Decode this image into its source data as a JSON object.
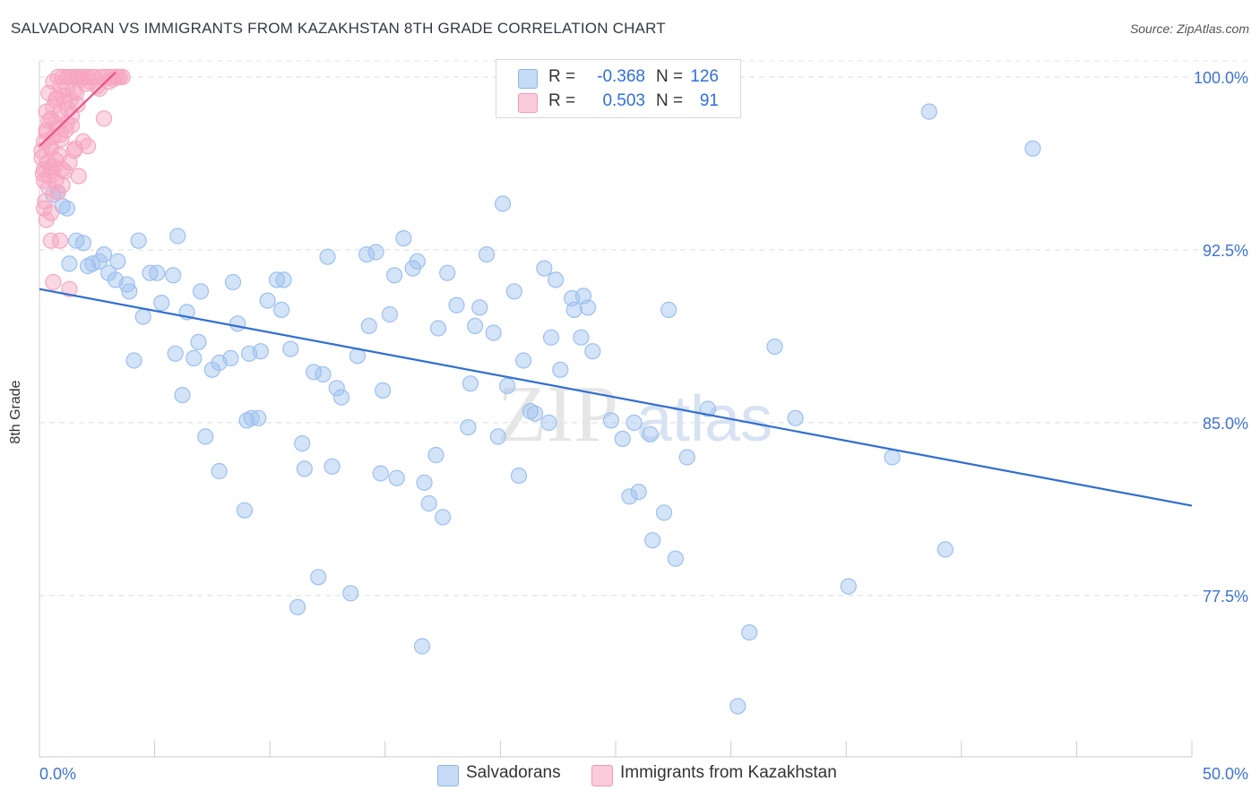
{
  "title": "SALVADORAN VS IMMIGRANTS FROM KAZAKHSTAN 8TH GRADE CORRELATION CHART",
  "source": "Source: ZipAtlas.com",
  "watermark": {
    "zip": "ZIP",
    "atlas": "atlas"
  },
  "legend": {
    "series": [
      {
        "r_label": "R =",
        "r_value": "-0.368",
        "n_label": "N =",
        "n_value": "126",
        "color": "#9dc0ef"
      },
      {
        "r_label": "R =",
        "r_value": "0.503",
        "n_label": "N =",
        "n_value": "91",
        "color": "#f6a6c1"
      }
    ]
  },
  "bottom_legend": [
    {
      "label": "Salvadorans",
      "color": "#9dc0ef"
    },
    {
      "label": "Immigrants from Kazakhstan",
      "color": "#f6a6c1"
    }
  ],
  "chart_data": {
    "type": "scatter",
    "title": "SALVADORAN VS IMMIGRANTS FROM KAZAKHSTAN 8TH GRADE CORRELATION CHART",
    "xlabel": "",
    "ylabel": "8th Grade",
    "xlim": [
      0,
      50
    ],
    "ylim": [
      70.5,
      100.7
    ],
    "x_tick_labels": [
      "0.0%",
      "50.0%"
    ],
    "y_ticks": [
      77.5,
      85.0,
      92.5,
      100.0
    ],
    "y_tick_labels": [
      "77.5%",
      "85.0%",
      "92.5%",
      "100.0%"
    ],
    "grid": true,
    "legend_position": "top-center",
    "series": [
      {
        "name": "Salvadorans",
        "color": "#9dc0ef",
        "line_color": "#2f6fd0",
        "trend": {
          "x": [
            0.0,
            50.0
          ],
          "y": [
            90.8,
            81.4
          ]
        },
        "points": [
          [
            0.8,
            95.0
          ],
          [
            1.0,
            94.4
          ],
          [
            1.2,
            94.3
          ],
          [
            1.6,
            92.9
          ],
          [
            1.9,
            92.8
          ],
          [
            2.1,
            91.8
          ],
          [
            2.3,
            91.9
          ],
          [
            2.8,
            92.3
          ],
          [
            3.0,
            91.5
          ],
          [
            3.4,
            92.0
          ],
          [
            3.8,
            91.0
          ],
          [
            3.9,
            90.7
          ],
          [
            4.1,
            87.7
          ],
          [
            4.3,
            92.9
          ],
          [
            4.5,
            89.6
          ],
          [
            4.8,
            91.5
          ],
          [
            5.1,
            91.5
          ],
          [
            5.3,
            90.2
          ],
          [
            5.8,
            91.4
          ],
          [
            5.9,
            88.0
          ],
          [
            6.0,
            93.1
          ],
          [
            6.2,
            86.2
          ],
          [
            6.4,
            89.8
          ],
          [
            6.7,
            87.8
          ],
          [
            6.9,
            88.5
          ],
          [
            7.0,
            90.7
          ],
          [
            7.2,
            84.4
          ],
          [
            7.5,
            87.3
          ],
          [
            7.8,
            82.9
          ],
          [
            7.8,
            87.6
          ],
          [
            8.3,
            87.8
          ],
          [
            8.4,
            91.1
          ],
          [
            8.6,
            89.3
          ],
          [
            8.9,
            81.2
          ],
          [
            9.1,
            88.0
          ],
          [
            9.2,
            85.2
          ],
          [
            9.5,
            85.2
          ],
          [
            9.6,
            88.1
          ],
          [
            9.9,
            90.3
          ],
          [
            10.3,
            91.2
          ],
          [
            10.5,
            89.9
          ],
          [
            10.6,
            91.2
          ],
          [
            10.9,
            88.2
          ],
          [
            11.2,
            77.0
          ],
          [
            11.4,
            84.1
          ],
          [
            11.5,
            83.0
          ],
          [
            11.9,
            87.2
          ],
          [
            12.1,
            78.3
          ],
          [
            12.3,
            87.1
          ],
          [
            12.5,
            92.2
          ],
          [
            12.7,
            83.1
          ],
          [
            12.9,
            86.5
          ],
          [
            13.1,
            86.1
          ],
          [
            13.5,
            77.6
          ],
          [
            13.8,
            87.9
          ],
          [
            14.2,
            92.3
          ],
          [
            14.3,
            89.2
          ],
          [
            14.6,
            92.4
          ],
          [
            14.8,
            82.8
          ],
          [
            15.2,
            89.7
          ],
          [
            15.4,
            91.4
          ],
          [
            15.5,
            82.6
          ],
          [
            15.8,
            93.0
          ],
          [
            16.2,
            91.7
          ],
          [
            16.4,
            92.0
          ],
          [
            16.6,
            75.3
          ],
          [
            16.7,
            82.4
          ],
          [
            16.9,
            81.5
          ],
          [
            17.2,
            83.6
          ],
          [
            17.3,
            89.1
          ],
          [
            17.5,
            80.9
          ],
          [
            17.7,
            91.5
          ],
          [
            18.1,
            90.1
          ],
          [
            18.6,
            84.8
          ],
          [
            18.9,
            89.2
          ],
          [
            19.1,
            90.0
          ],
          [
            19.4,
            92.3
          ],
          [
            19.7,
            88.9
          ],
          [
            19.9,
            84.4
          ],
          [
            20.1,
            94.5
          ],
          [
            20.3,
            86.6
          ],
          [
            20.6,
            90.7
          ],
          [
            20.8,
            82.7
          ],
          [
            21.0,
            87.7
          ],
          [
            21.3,
            85.5
          ],
          [
            21.5,
            85.4
          ],
          [
            21.9,
            91.7
          ],
          [
            22.1,
            85.0
          ],
          [
            22.2,
            88.7
          ],
          [
            22.4,
            91.2
          ],
          [
            22.6,
            87.3
          ],
          [
            23.1,
            90.4
          ],
          [
            23.2,
            89.9
          ],
          [
            23.5,
            88.7
          ],
          [
            23.6,
            90.5
          ],
          [
            23.8,
            90.0
          ],
          [
            24.0,
            88.1
          ],
          [
            24.4,
            100.0
          ],
          [
            24.8,
            85.1
          ],
          [
            25.3,
            84.3
          ],
          [
            25.6,
            81.8
          ],
          [
            25.8,
            85.0
          ],
          [
            26.0,
            82.0
          ],
          [
            26.5,
            84.5
          ],
          [
            26.6,
            79.9
          ],
          [
            27.1,
            81.1
          ],
          [
            27.3,
            89.9
          ],
          [
            28.1,
            83.5
          ],
          [
            29.0,
            85.6
          ],
          [
            30.8,
            75.9
          ],
          [
            30.3,
            72.7
          ],
          [
            31.9,
            88.3
          ],
          [
            32.8,
            85.2
          ],
          [
            35.1,
            77.9
          ],
          [
            37.0,
            83.5
          ],
          [
            38.6,
            98.5
          ],
          [
            39.3,
            79.5
          ],
          [
            43.1,
            96.9
          ],
          [
            0.6,
            94.9
          ],
          [
            1.3,
            91.9
          ],
          [
            2.6,
            92.0
          ],
          [
            3.3,
            91.2
          ],
          [
            9.0,
            85.1
          ],
          [
            14.9,
            86.4
          ],
          [
            18.7,
            86.7
          ],
          [
            27.6,
            79.1
          ]
        ]
      },
      {
        "name": "Immigrants from Kazakhstan",
        "color": "#f6a6c1",
        "line_color": "#e8558a",
        "trend": {
          "x": [
            0.0,
            3.3
          ],
          "y": [
            97.0,
            100.2
          ]
        },
        "points": [
          [
            0.1,
            96.8
          ],
          [
            0.1,
            96.5
          ],
          [
            0.15,
            95.8
          ],
          [
            0.2,
            97.2
          ],
          [
            0.2,
            96.0
          ],
          [
            0.25,
            94.6
          ],
          [
            0.3,
            98.5
          ],
          [
            0.3,
            97.6
          ],
          [
            0.35,
            96.3
          ],
          [
            0.4,
            95.2
          ],
          [
            0.4,
            99.3
          ],
          [
            0.45,
            97.0
          ],
          [
            0.5,
            98.2
          ],
          [
            0.5,
            96.9
          ],
          [
            0.55,
            95.9
          ],
          [
            0.6,
            99.8
          ],
          [
            0.6,
            97.4
          ],
          [
            0.65,
            96.1
          ],
          [
            0.7,
            98.0
          ],
          [
            0.7,
            95.5
          ],
          [
            0.75,
            99.1
          ],
          [
            0.8,
            100.0
          ],
          [
            0.8,
            97.8
          ],
          [
            0.85,
            96.6
          ],
          [
            0.9,
            99.6
          ],
          [
            0.9,
            98.4
          ],
          [
            0.95,
            97.3
          ],
          [
            1.0,
            100.0
          ],
          [
            1.0,
            96.0
          ],
          [
            1.05,
            99.2
          ],
          [
            1.1,
            98.9
          ],
          [
            1.15,
            97.7
          ],
          [
            1.2,
            100.0
          ],
          [
            1.2,
            99.5
          ],
          [
            1.25,
            98.6
          ],
          [
            1.3,
            100.0
          ],
          [
            1.35,
            99.0
          ],
          [
            1.4,
            97.9
          ],
          [
            1.45,
            100.0
          ],
          [
            1.5,
            99.4
          ],
          [
            1.55,
            96.9
          ],
          [
            1.6,
            100.0
          ],
          [
            1.65,
            98.8
          ],
          [
            1.7,
            100.0
          ],
          [
            1.8,
            99.9
          ],
          [
            1.9,
            100.0
          ],
          [
            2.0,
            99.7
          ],
          [
            2.1,
            100.0
          ],
          [
            2.2,
            99.8
          ],
          [
            2.3,
            100.0
          ],
          [
            2.5,
            99.6
          ],
          [
            2.7,
            100.0
          ],
          [
            2.8,
            98.2
          ],
          [
            2.9,
            100.0
          ],
          [
            3.1,
            100.0
          ],
          [
            3.2,
            99.9
          ],
          [
            3.3,
            100.0
          ],
          [
            3.4,
            100.0
          ],
          [
            3.5,
            100.0
          ],
          [
            3.6,
            100.0
          ],
          [
            0.2,
            94.3
          ],
          [
            0.3,
            93.8
          ],
          [
            0.5,
            92.9
          ],
          [
            0.6,
            91.1
          ],
          [
            0.9,
            92.9
          ],
          [
            1.3,
            90.8
          ],
          [
            0.4,
            95.7
          ],
          [
            0.5,
            96.1
          ],
          [
            0.7,
            96.4
          ],
          [
            0.8,
            95.0
          ],
          [
            1.0,
            95.3
          ],
          [
            1.1,
            95.9
          ],
          [
            1.3,
            96.3
          ],
          [
            1.5,
            96.8
          ],
          [
            1.7,
            95.7
          ],
          [
            1.9,
            97.2
          ],
          [
            2.1,
            97.0
          ],
          [
            0.3,
            97.7
          ],
          [
            0.4,
            98.1
          ],
          [
            0.6,
            98.7
          ],
          [
            0.7,
            99.0
          ],
          [
            0.9,
            97.5
          ],
          [
            1.2,
            98.0
          ],
          [
            1.4,
            98.3
          ],
          [
            1.6,
            99.3
          ],
          [
            1.8,
            100.0
          ],
          [
            2.4,
            100.0
          ],
          [
            2.6,
            99.5
          ],
          [
            3.0,
            99.8
          ],
          [
            0.2,
            95.5
          ],
          [
            0.5,
            94.1
          ]
        ]
      }
    ]
  }
}
